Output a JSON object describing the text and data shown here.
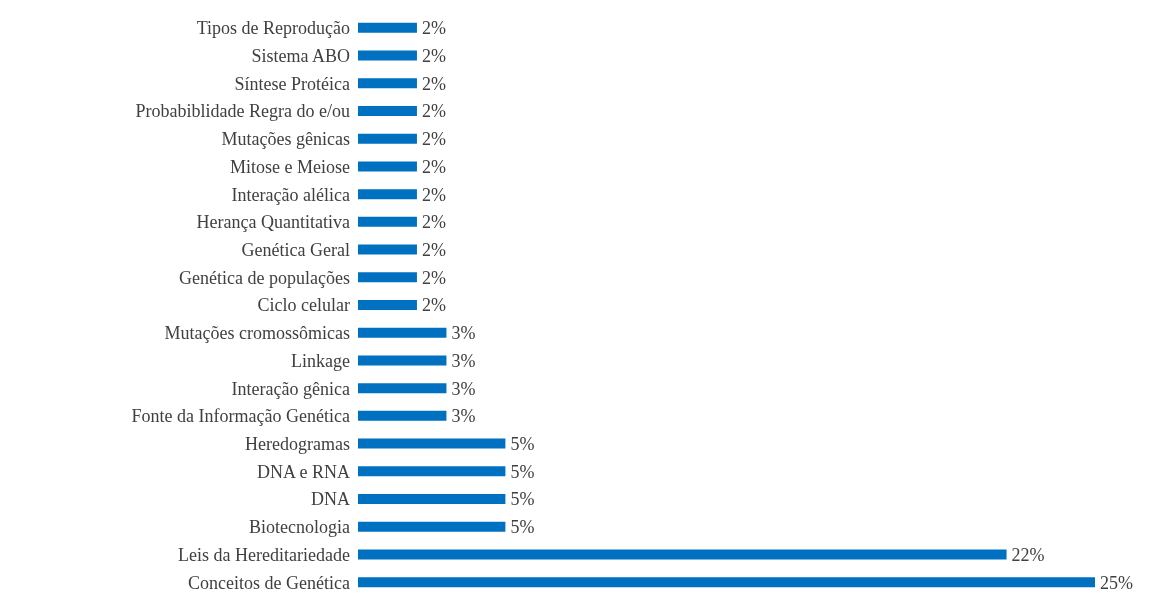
{
  "chart_data": {
    "type": "bar",
    "orientation": "horizontal",
    "categories": [
      "Tipos de Reprodução",
      "Sistema ABO",
      "Síntese Protéica",
      "Probabiblidade Regra do e/ou",
      "Mutações gênicas",
      "Mitose e Meiose",
      "Interação alélica",
      "Herança Quantitativa",
      "Genética Geral",
      "Genética de populações",
      "Ciclo celular",
      "Mutações cromossômicas",
      "Linkage",
      "Interação gênica",
      "Fonte da Informação Genética",
      "Heredogramas",
      "DNA e RNA",
      "DNA",
      "Biotecnologia",
      "Leis da Hereditariedade",
      "Conceitos de Genética"
    ],
    "values": [
      2,
      2,
      2,
      2,
      2,
      2,
      2,
      2,
      2,
      2,
      2,
      3,
      3,
      3,
      3,
      5,
      5,
      5,
      5,
      22,
      25
    ],
    "value_labels": [
      "2%",
      "2%",
      "2%",
      "2%",
      "2%",
      "2%",
      "2%",
      "2%",
      "2%",
      "2%",
      "2%",
      "3%",
      "3%",
      "3%",
      "3%",
      "5%",
      "5%",
      "5%",
      "5%",
      "22%",
      "25%"
    ],
    "color": "#0070c0",
    "xlim": [
      0,
      25
    ],
    "tick_labels": "y"
  }
}
